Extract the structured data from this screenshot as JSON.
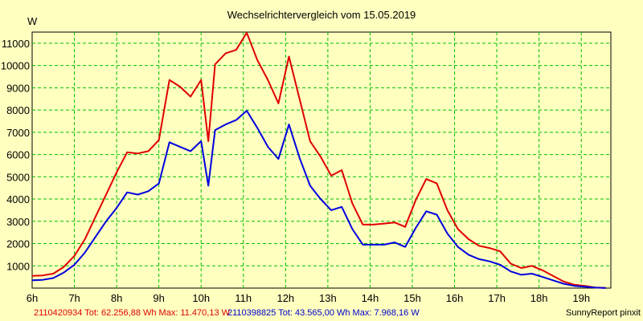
{
  "chart_data": {
    "type": "line",
    "title": "Wechselrichtervergleich vom 15.05.2019",
    "ylabel": "W",
    "xlabel": "",
    "x_ticks": [
      "6h",
      "7h",
      "8h",
      "9h",
      "10h",
      "11h",
      "12h",
      "13h",
      "14h",
      "15h",
      "16h",
      "17h",
      "18h",
      "19h"
    ],
    "y_ticks": [
      1000,
      2000,
      3000,
      4000,
      5000,
      6000,
      7000,
      8000,
      9000,
      10000,
      11000
    ],
    "xlim": [
      6.0,
      19.7
    ],
    "ylim": [
      0,
      11500
    ],
    "grid": true,
    "series": [
      {
        "name": "2110420934",
        "color": "#e00000",
        "x": [
          6.0,
          6.25,
          6.5,
          6.75,
          7.0,
          7.25,
          7.5,
          7.75,
          8.0,
          8.25,
          8.5,
          8.75,
          9.0,
          9.25,
          9.5,
          9.75,
          10.0,
          10.17,
          10.33,
          10.58,
          10.83,
          11.08,
          11.33,
          11.58,
          11.83,
          12.08,
          12.33,
          12.58,
          12.83,
          13.08,
          13.33,
          13.58,
          13.83,
          14.08,
          14.33,
          14.58,
          14.83,
          15.08,
          15.33,
          15.58,
          15.83,
          16.08,
          16.33,
          16.58,
          16.83,
          17.08,
          17.33,
          17.58,
          17.83,
          18.08,
          18.33,
          18.58,
          18.83,
          19.08,
          19.33,
          19.58
        ],
        "y": [
          550,
          570,
          650,
          950,
          1450,
          2200,
          3200,
          4200,
          5200,
          6100,
          6050,
          6150,
          6650,
          9350,
          9050,
          8600,
          9350,
          6600,
          10050,
          10550,
          10700,
          11470,
          10250,
          9350,
          8300,
          10400,
          8500,
          6600,
          5900,
          5050,
          5300,
          3800,
          2850,
          2850,
          2900,
          2950,
          2750,
          3950,
          4900,
          4700,
          3500,
          2650,
          2200,
          1900,
          1800,
          1650,
          1100,
          900,
          1000,
          800,
          550,
          300,
          150,
          100,
          30,
          10
        ]
      },
      {
        "name": "2110398825",
        "color": "#0000e0",
        "x": [
          6.0,
          6.25,
          6.5,
          6.75,
          7.0,
          7.25,
          7.5,
          7.75,
          8.0,
          8.25,
          8.5,
          8.75,
          9.0,
          9.25,
          9.5,
          9.75,
          10.0,
          10.17,
          10.33,
          10.58,
          10.83,
          11.08,
          11.33,
          11.58,
          11.83,
          12.08,
          12.33,
          12.58,
          12.83,
          13.08,
          13.33,
          13.58,
          13.83,
          14.08,
          14.33,
          14.58,
          14.83,
          15.08,
          15.33,
          15.58,
          15.83,
          16.08,
          16.33,
          16.58,
          16.83,
          17.08,
          17.33,
          17.58,
          17.83,
          18.08,
          18.33,
          18.58,
          18.83,
          19.08,
          19.33,
          19.58
        ],
        "y": [
          350,
          370,
          450,
          700,
          1050,
          1600,
          2300,
          3000,
          3600,
          4300,
          4200,
          4350,
          4700,
          6550,
          6350,
          6150,
          6600,
          4600,
          7100,
          7350,
          7550,
          7968,
          7200,
          6350,
          5800,
          7350,
          5850,
          4600,
          4000,
          3500,
          3650,
          2650,
          1950,
          1950,
          1950,
          2050,
          1850,
          2700,
          3450,
          3300,
          2450,
          1850,
          1500,
          1300,
          1200,
          1050,
          750,
          600,
          650,
          500,
          350,
          200,
          100,
          60,
          20,
          5
        ]
      }
    ]
  },
  "footer": {
    "series1_text": "2110420934 Tot: 62.256,88 Wh Max: 11.470,13 W",
    "series2_text": "2110398825 Tot: 43.565,00 Wh Max: 7.968,16 W",
    "credit": "SunnyReport pinxit"
  }
}
